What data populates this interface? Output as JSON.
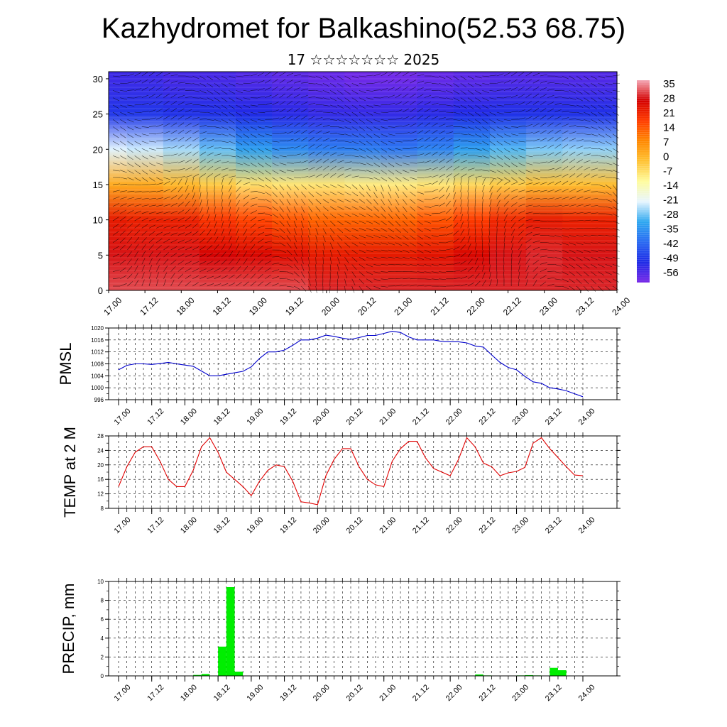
{
  "header": {
    "title": "Kazhydromet for Balkashino(52.53 68.75)",
    "subtitle": "17 ☆☆☆☆☆☆☆ 2025"
  },
  "time_labels": [
    "17.00",
    "17.12",
    "18.00",
    "18.12",
    "19.00",
    "19.12",
    "20.00",
    "20.12",
    "21.00",
    "21.12",
    "22.00",
    "22.12",
    "23.00",
    "23.12",
    "24.00"
  ],
  "colors": {
    "pmsl_line": "#0000cc",
    "temp_line": "#e00000",
    "precip_bar": "#00ee00",
    "palette": [
      "#f4a6b4",
      "#d40000",
      "#ff3c00",
      "#ff8800",
      "#ffc233",
      "#fffc9e",
      "#e8f6ff",
      "#2ea8f0",
      "#2a6af2",
      "#1e2ae6",
      "#7a2ae8"
    ]
  },
  "colorbar": {
    "labels": [
      "35",
      "28",
      "21",
      "14",
      "7",
      "0",
      "-7",
      "-14",
      "-21",
      "-28",
      "-35",
      "-42",
      "-49",
      "-56"
    ]
  },
  "chart_data": [
    {
      "type": "heatmap",
      "title": "",
      "xlabel": "",
      "ylabel": "",
      "x_ticks": [
        "17.00",
        "17.12",
        "18.00",
        "18.12",
        "19.00",
        "19.12",
        "20.00",
        "20.12",
        "21.00",
        "21.12",
        "22.00",
        "22.12",
        "23.00",
        "23.12",
        "24.00"
      ],
      "y_ticks": [
        "0",
        "5",
        "10",
        "15",
        "20",
        "25",
        "30"
      ],
      "ylim": [
        0,
        31
      ],
      "color_scale": [
        -56,
        35
      ],
      "legend_placement": "right",
      "notes_overlay": "wind barbs",
      "series": [
        {
          "level": 0,
          "values": [
            30,
            30,
            30,
            30,
            30,
            30,
            28,
            28,
            28,
            28,
            28,
            28,
            28,
            28,
            28
          ]
        },
        {
          "level": 5,
          "values": [
            27,
            27,
            27,
            26,
            25,
            24,
            22,
            22,
            22,
            23,
            25,
            27,
            28,
            27,
            27
          ]
        },
        {
          "level": 10,
          "values": [
            22,
            21,
            21,
            18,
            16,
            14,
            12,
            12,
            12,
            14,
            17,
            20,
            22,
            21,
            21
          ]
        },
        {
          "level": 15,
          "values": [
            2,
            2,
            0,
            -3,
            -6,
            -7,
            -7,
            -8,
            -8,
            -7,
            -5,
            -3,
            -1,
            -1,
            -1
          ]
        },
        {
          "level": 20,
          "values": [
            -20,
            -21,
            -23,
            -26,
            -30,
            -33,
            -35,
            -35,
            -36,
            -34,
            -30,
            -27,
            -25,
            -24,
            -24
          ]
        },
        {
          "level": 25,
          "values": [
            -45,
            -45,
            -46,
            -46,
            -47,
            -48,
            -49,
            -49,
            -49,
            -48,
            -47,
            -46,
            -46,
            -46,
            -46
          ]
        },
        {
          "level": 30,
          "values": [
            -50,
            -50,
            -51,
            -51,
            -52,
            -53,
            -54,
            -55,
            -55,
            -54,
            -53,
            -52,
            -52,
            -52,
            -52
          ]
        }
      ]
    },
    {
      "type": "line",
      "ylabel": "PMSL",
      "ylim": [
        996,
        1020
      ],
      "y_ticks": [
        "996",
        "1000",
        "1004",
        "1008",
        "1012",
        "1016",
        "1020"
      ],
      "x_ticks": [
        "17.00",
        "17.12",
        "18.00",
        "18.12",
        "19.00",
        "19.12",
        "20.00",
        "20.12",
        "21.00",
        "21.12",
        "22.00",
        "22.12",
        "23.00",
        "23.12",
        "24.00"
      ],
      "grid": true,
      "x": [
        0,
        1,
        2,
        3,
        4,
        5,
        6,
        7,
        8,
        9,
        10,
        11,
        12,
        13,
        14,
        15,
        16,
        17,
        18,
        19,
        20,
        21,
        22,
        23,
        24,
        25,
        26,
        27,
        28,
        29,
        30,
        31,
        32,
        33,
        34,
        35,
        36,
        37,
        38,
        39,
        40,
        41,
        42,
        43,
        44,
        45,
        46,
        47,
        48,
        49,
        50,
        51,
        52,
        53,
        54,
        55,
        56
      ],
      "x_note": "3-hourly steps from 17.00",
      "series": [
        {
          "values": [
            1006,
            1007.5,
            1008,
            1008,
            1007.8,
            1008.1,
            1008.5,
            1008,
            1007.6,
            1007.2,
            1005.6,
            1004,
            1004,
            1004.5,
            1005,
            1005.5,
            1007,
            1009.8,
            1012,
            1012,
            1012.6,
            1014.2,
            1016,
            1016,
            1016.6,
            1017.6,
            1017.2,
            1016.6,
            1016.2,
            1016.8,
            1017.5,
            1017.5,
            1018.2,
            1018.9,
            1018.5,
            1017,
            1016,
            1016,
            1016,
            1015.5,
            1015.4,
            1015.4,
            1015,
            1014,
            1013.6,
            1011,
            1008.5,
            1006.8,
            1006,
            1003.8,
            1002,
            1001.5,
            1000,
            999.6,
            999,
            998,
            997
          ]
        }
      ]
    },
    {
      "type": "line",
      "ylabel": "TEMP at 2 M",
      "ylim": [
        8,
        28
      ],
      "y_ticks": [
        "8",
        "12",
        "16",
        "20",
        "24",
        "28"
      ],
      "x_ticks": [
        "17.00",
        "17.12",
        "18.00",
        "18.12",
        "19.00",
        "19.12",
        "20.00",
        "20.12",
        "21.00",
        "21.12",
        "22.00",
        "22.12",
        "23.00",
        "23.12",
        "24.00"
      ],
      "grid": true,
      "x": [
        0,
        1,
        2,
        3,
        4,
        5,
        6,
        7,
        8,
        9,
        10,
        11,
        12,
        13,
        14,
        15,
        16,
        17,
        18,
        19,
        20,
        21,
        22,
        23,
        24,
        25,
        26,
        27,
        28,
        29,
        30,
        31,
        32,
        33,
        34,
        35,
        36,
        37,
        38,
        39,
        40,
        41,
        42,
        43,
        44,
        45,
        46,
        47,
        48,
        49,
        50,
        51,
        52,
        53,
        54,
        55,
        56
      ],
      "x_note": "3-hourly steps from 17.00",
      "series": [
        {
          "values": [
            14,
            19.5,
            23.5,
            25,
            25,
            21,
            16,
            14,
            14,
            18.5,
            25,
            27.5,
            23.5,
            18,
            16,
            14,
            11.5,
            15.5,
            18.5,
            20,
            19.5,
            15.5,
            9.8,
            9.5,
            9,
            17,
            21.5,
            24.5,
            24.5,
            19.5,
            16,
            14.5,
            14,
            21,
            24.5,
            26.5,
            26.5,
            22,
            19,
            18,
            17,
            21.5,
            27.5,
            25,
            20.5,
            19.5,
            17,
            17.8,
            18.2,
            19.3,
            26,
            27.5,
            24.5,
            22,
            19.5,
            17.2,
            17
          ]
        }
      ]
    },
    {
      "type": "bar",
      "ylabel": "PRECIP, mm",
      "ylim": [
        0,
        10
      ],
      "y_ticks": [
        "0",
        "2",
        "4",
        "6",
        "8",
        "10"
      ],
      "x_ticks": [
        "17.00",
        "17.12",
        "18.00",
        "18.12",
        "19.00",
        "19.12",
        "20.00",
        "20.12",
        "21.00",
        "21.12",
        "22.00",
        "22.12",
        "23.00",
        "23.12",
        "24.00"
      ],
      "grid": true,
      "x": [
        0,
        1,
        2,
        3,
        4,
        5,
        6,
        7,
        8,
        9,
        10,
        11,
        12,
        13,
        14,
        15,
        16,
        17,
        18,
        19,
        20,
        21,
        22,
        23,
        24,
        25,
        26,
        27,
        28,
        29,
        30,
        31,
        32,
        33,
        34,
        35,
        36,
        37,
        38,
        39,
        40,
        41,
        42,
        43,
        44,
        45,
        46,
        47,
        48,
        49,
        50,
        51,
        52,
        53,
        54,
        55,
        56
      ],
      "x_note": "3-hourly steps from 17.00",
      "series": [
        {
          "values": [
            0,
            0,
            0,
            0,
            0,
            0,
            0,
            0,
            0,
            0.1,
            0.2,
            0,
            3.1,
            9.4,
            0.45,
            0,
            0,
            0,
            0,
            0,
            0,
            0,
            0,
            0,
            0,
            0,
            0,
            0,
            0,
            0,
            0,
            0,
            0,
            0,
            0,
            0,
            0,
            0,
            0,
            0,
            0,
            0,
            0,
            0.15,
            0.05,
            0,
            0,
            0,
            0.05,
            0.08,
            0.05,
            0,
            0.85,
            0.6,
            0,
            0,
            0
          ]
        }
      ]
    }
  ]
}
